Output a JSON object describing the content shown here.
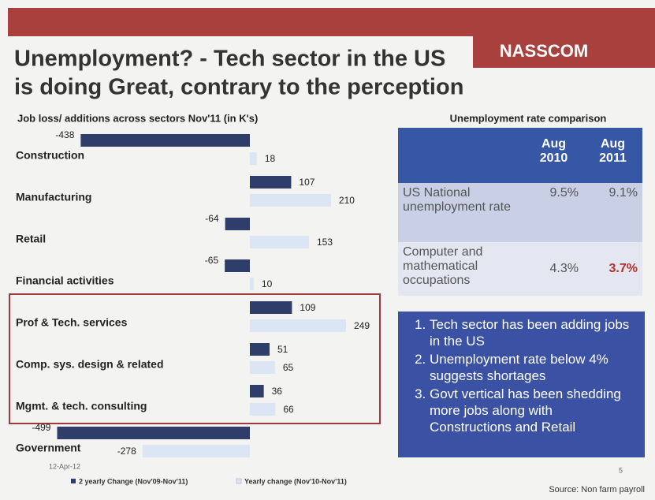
{
  "header": {
    "title_lines": [
      "Unemployment? - Tech sector in the US",
      "is doing Great, contrary to the perception"
    ],
    "logo": "NASSCOM"
  },
  "chart_data": {
    "type": "hbar",
    "title": "Job loss/ additions across sectors Nov'11 (in K's)",
    "categories": [
      "Construction",
      "Manufacturing",
      "Retail",
      "Financial activities",
      "Prof & Tech. services",
      "Comp. sys. design & related",
      "Mgmt. & tech. consulting",
      "Government"
    ],
    "series": [
      {
        "name": "2 yearly Change (Nov'09-Nov'11)",
        "color": "#2f3d6b",
        "values": [
          -438,
          107,
          -64,
          -65,
          109,
          51,
          36,
          -499
        ]
      },
      {
        "name": "Yearly change (Nov'10-Nov'11)",
        "color": "#dbe5f4",
        "values": [
          18,
          210,
          153,
          10,
          249,
          65,
          66,
          -278
        ]
      }
    ]
  },
  "table": {
    "title": "Unemployment rate comparison",
    "columns": [
      "Aug 2010",
      "Aug 2011"
    ],
    "rows": [
      {
        "label": "US National unemployment rate",
        "values": [
          "9.5%",
          "9.1%"
        ]
      },
      {
        "label": "Computer and mathematical occupations",
        "values": [
          "4.3%",
          "3.7%"
        ]
      }
    ]
  },
  "notes": [
    "Tech sector has been adding jobs in the US",
    "Unemployment rate below 4% suggests shortages",
    "Govt vertical has been shedding more jobs along with Constructions and Retail"
  ],
  "footer": {
    "date": "12-Apr-12",
    "page": "5",
    "source": "Source: Non farm payroll"
  }
}
